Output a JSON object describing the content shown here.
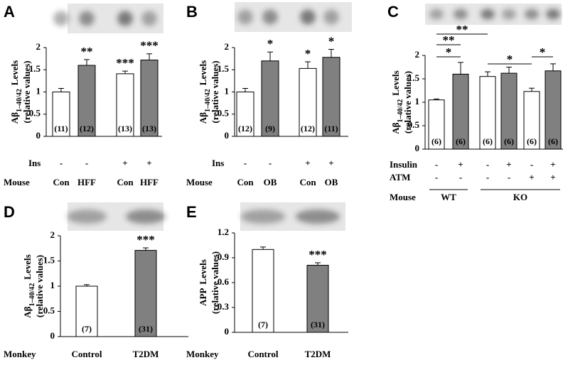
{
  "chart_data": [
    {
      "type": "bar",
      "panel": "A",
      "ylabel": [
        {
          "text": "Aβ"
        },
        {
          "text": "1–40/42",
          "sub": true
        },
        {
          "text": "Levels"
        }
      ],
      "ylabel2": "(relative values)",
      "categories": [
        "Con",
        "HFF",
        "Con",
        "HFF"
      ],
      "values": [
        1.0,
        1.6,
        1.41,
        1.72
      ],
      "errors": [
        0.08,
        0.13,
        0.06,
        0.14
      ],
      "colors": [
        "#ffffff",
        "#808080",
        "#ffffff",
        "#808080"
      ],
      "n_labels": [
        "(11)",
        "(12)",
        "(13)",
        "(13)"
      ],
      "sig": [
        null,
        "**",
        "***",
        "***"
      ],
      "rows": [
        {
          "label": "Ins",
          "values": [
            "-",
            "-",
            "+",
            "+"
          ]
        }
      ],
      "category_label": "Mouse",
      "ylim": [
        0,
        2
      ],
      "yticks": [
        0,
        0.5,
        1,
        1.5,
        2
      ]
    },
    {
      "type": "bar",
      "panel": "B",
      "ylabel": [
        {
          "text": "Aβ"
        },
        {
          "text": "1–40/42",
          "sub": true
        },
        {
          "text": "Levels"
        }
      ],
      "ylabel2": "(relative values)",
      "categories": [
        "Con",
        "OB",
        "Con",
        "OB"
      ],
      "values": [
        1.0,
        1.7,
        1.53,
        1.78
      ],
      "errors": [
        0.08,
        0.2,
        0.15,
        0.18
      ],
      "colors": [
        "#ffffff",
        "#808080",
        "#ffffff",
        "#808080"
      ],
      "n_labels": [
        "(12)",
        "(9)",
        "(12)",
        "(11)"
      ],
      "sig": [
        null,
        "*",
        "*",
        "*"
      ],
      "rows": [
        {
          "label": "Ins",
          "values": [
            "-",
            "-",
            "+",
            "+"
          ]
        }
      ],
      "category_label": "Mouse",
      "ylim": [
        0,
        2
      ],
      "yticks": [
        0,
        0.5,
        1,
        1.5,
        2
      ]
    },
    {
      "type": "bar",
      "panel": "C",
      "ylabel": [
        {
          "text": "Aβ"
        },
        {
          "text": "1–40/42",
          "sub": true
        },
        {
          "text": "Levels"
        }
      ],
      "ylabel2": "(relative values)",
      "values": [
        1.05,
        1.6,
        1.55,
        1.62,
        1.23,
        1.67
      ],
      "errors": [
        0.02,
        0.25,
        0.1,
        0.13,
        0.07,
        0.15
      ],
      "colors": [
        "#ffffff",
        "#808080",
        "#ffffff",
        "#808080",
        "#ffffff",
        "#808080"
      ],
      "n_labels": [
        "(6)",
        "(6)",
        "(6)",
        "(6)",
        "(6)",
        "(6)"
      ],
      "rows": [
        {
          "label": "Insulin",
          "values": [
            "-",
            "+",
            "-",
            "+",
            "-",
            "+"
          ]
        },
        {
          "label": "ATM",
          "values": [
            "-",
            "-",
            "-",
            "-",
            "+",
            "+"
          ]
        }
      ],
      "category_label": "Mouse",
      "groups": [
        {
          "text": "WT",
          "from": 0,
          "to": 1
        },
        {
          "text": "KO",
          "from": 2,
          "to": 5
        }
      ],
      "brackets": [
        {
          "label": "**",
          "from": 0,
          "to": 2
        },
        {
          "label": "**",
          "from": 0,
          "to": 1
        },
        {
          "label": "*",
          "from": 0,
          "to": 1
        },
        {
          "label": "*",
          "from": 2,
          "to": 4
        },
        {
          "label": "*",
          "from": 4,
          "to": 5
        }
      ],
      "ylim": [
        0,
        2
      ],
      "yticks": [
        0,
        0.5,
        1,
        1.5,
        2
      ]
    },
    {
      "type": "bar",
      "panel": "D",
      "ylabel": [
        {
          "text": "Aβ"
        },
        {
          "text": "1–40/42",
          "sub": true
        },
        {
          "text": "Levels"
        }
      ],
      "ylabel2": "(relative values)",
      "categories": [
        "Control",
        "T2DM"
      ],
      "values": [
        1.0,
        1.71
      ],
      "errors": [
        0.03,
        0.05
      ],
      "colors": [
        "#ffffff",
        "#808080"
      ],
      "n_labels": [
        "(7)",
        "(31)"
      ],
      "sig": [
        null,
        "***"
      ],
      "category_label": "Monkey",
      "ylim": [
        0,
        2
      ],
      "yticks": [
        0,
        0.5,
        1,
        1.5,
        2
      ]
    },
    {
      "type": "bar",
      "panel": "E",
      "ylabel": [
        {
          "text": "APP"
        },
        {
          "text": "Levels"
        }
      ],
      "ylabel2": "(relative values)",
      "categories": [
        "Control",
        "T2DM"
      ],
      "values": [
        1.0,
        0.81
      ],
      "errors": [
        0.03,
        0.03
      ],
      "colors": [
        "#ffffff",
        "#808080"
      ],
      "n_labels": [
        "(7)",
        "(31)"
      ],
      "sig": [
        null,
        "***"
      ],
      "category_label": "Monkey",
      "ylim": [
        0,
        1.2
      ],
      "yticks": [
        0,
        0.3,
        0.6,
        0.9,
        1.2
      ]
    }
  ]
}
